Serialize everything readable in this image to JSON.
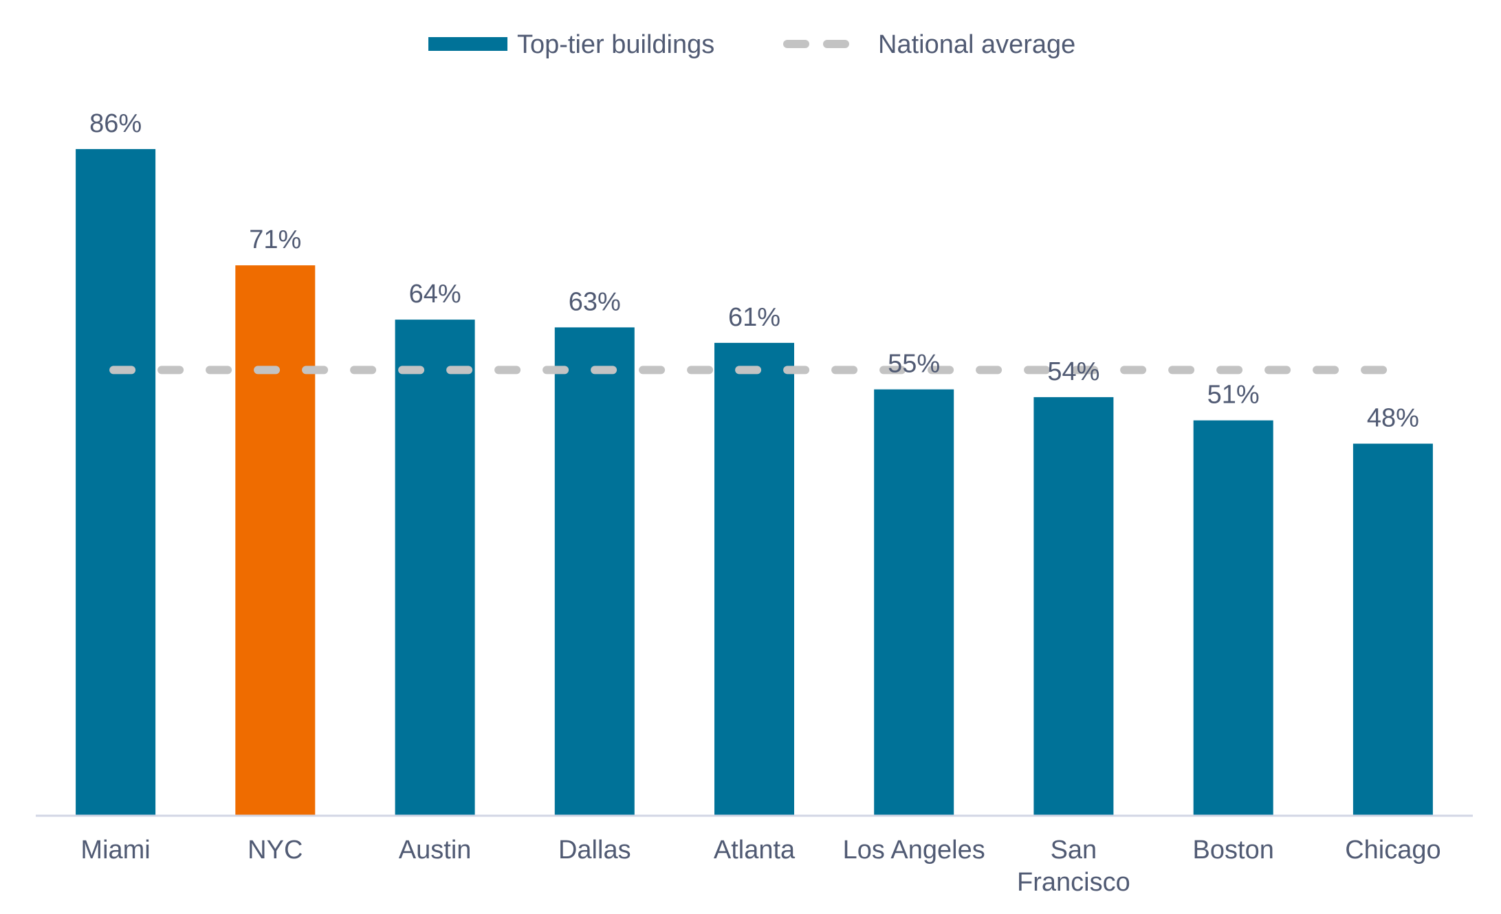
{
  "chart_data": {
    "type": "bar",
    "categories": [
      "Miami",
      "NYC",
      "Austin",
      "Dallas",
      "Atlanta",
      "Los Angeles",
      "San Francisco",
      "Boston",
      "Chicago"
    ],
    "category_lines": [
      [
        "Miami"
      ],
      [
        "NYC"
      ],
      [
        "Austin"
      ],
      [
        "Dallas"
      ],
      [
        "Atlanta"
      ],
      [
        "Los Angeles"
      ],
      [
        "San",
        "Francisco"
      ],
      [
        "Boston"
      ],
      [
        "Chicago"
      ]
    ],
    "series": [
      {
        "name": "Top-tier buildings",
        "values": [
          86,
          71,
          64,
          63,
          61,
          55,
          54,
          51,
          48
        ],
        "labels": [
          "86%",
          "71%",
          "64%",
          "63%",
          "61%",
          "55%",
          "54%",
          "51%",
          "48%"
        ]
      }
    ],
    "reference_line": {
      "name": "National average",
      "value": 57.5
    },
    "highlight_category": "NYC",
    "ylim": [
      0,
      100
    ],
    "legend_position": "top-center",
    "grid": false,
    "y_axis_visible": false,
    "title": "",
    "xlabel": "",
    "ylabel": ""
  },
  "colors": {
    "bar": "#007298",
    "highlight": "#ef6c00",
    "average_line": "#c3c3c3",
    "axis": "#d2d6e4",
    "text": "#505a73"
  },
  "legend": {
    "bars_label": "Top-tier buildings",
    "line_label": "National average"
  }
}
